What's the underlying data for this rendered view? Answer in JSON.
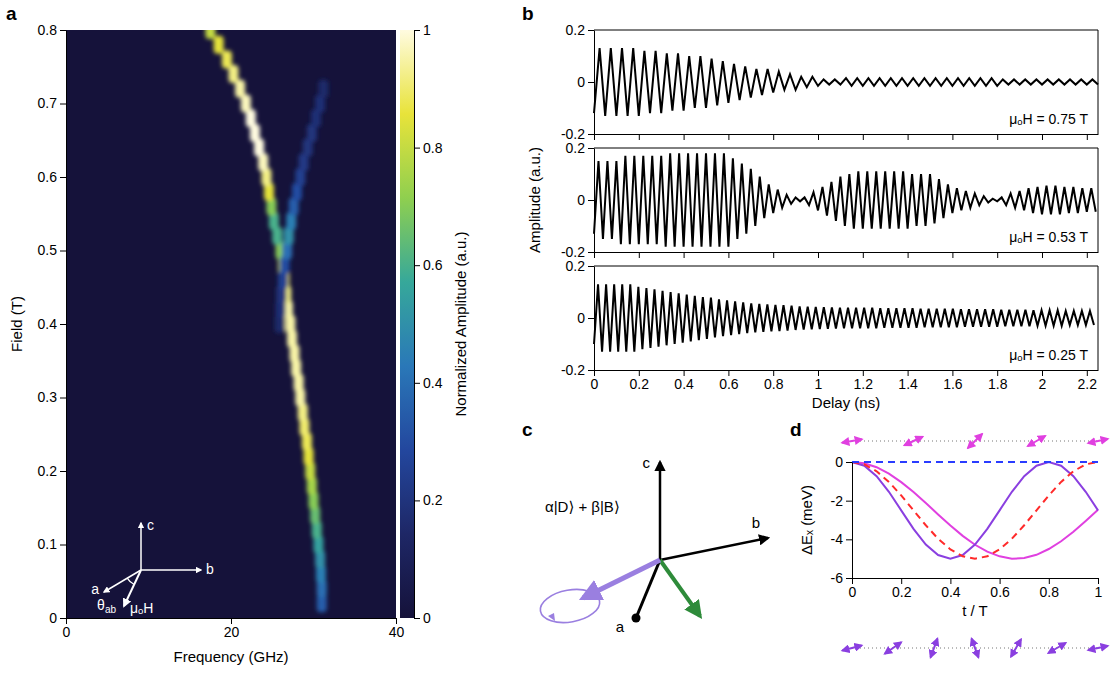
{
  "panel_labels": [
    "a",
    "b",
    "c",
    "d"
  ],
  "chart_data": [
    {
      "type": "heatmap",
      "xlabel": "Frequency (GHz)",
      "ylabel": "Field (T)",
      "xlim": [
        0,
        40
      ],
      "xticks": [
        0,
        20,
        40
      ],
      "ylim": [
        0,
        0.8
      ],
      "yticks": [
        0,
        0.1,
        0.2,
        0.3,
        0.4,
        0.5,
        0.6,
        0.7,
        0.8
      ],
      "colorbar": {
        "title": "Normalized Amplitude (a.u.)",
        "range": [
          0,
          1
        ],
        "ticks": [
          0,
          0.2,
          0.4,
          0.6,
          0.8,
          1
        ]
      },
      "annotations": [
        "c",
        "b",
        "a",
        "θab",
        "μₒH"
      ],
      "series": [
        {
          "x": [
            31,
            31,
            30.9,
            30.8,
            30.6,
            30.4,
            30.2,
            30,
            29.8,
            29.6,
            29.4,
            29.2,
            28.9,
            28.7,
            28.4,
            28.2,
            27.9,
            27.7,
            27.4,
            27.2,
            26.9,
            26.7,
            26.5,
            26.3,
            26,
            25.6,
            25.2,
            24.9,
            24.6,
            24.3,
            23.9,
            23.4,
            22.9,
            22.4,
            21.8,
            21.1,
            20.3,
            19.5,
            18.5,
            17.5
          ],
          "y": [
            0.02,
            0.04,
            0.06,
            0.08,
            0.1,
            0.12,
            0.14,
            0.16,
            0.18,
            0.2,
            0.22,
            0.24,
            0.26,
            0.28,
            0.3,
            0.32,
            0.34,
            0.36,
            0.38,
            0.4,
            0.42,
            0.44,
            0.46,
            0.48,
            0.5,
            0.52,
            0.54,
            0.56,
            0.58,
            0.6,
            0.62,
            0.64,
            0.66,
            0.68,
            0.7,
            0.72,
            0.74,
            0.76,
            0.78,
            0.8
          ],
          "amplitude": [
            0.35,
            0.4,
            0.45,
            0.5,
            0.55,
            0.6,
            0.65,
            0.7,
            0.75,
            0.8,
            0.85,
            0.88,
            0.9,
            0.92,
            0.95,
            0.95,
            0.95,
            0.95,
            0.95,
            0.95,
            0.95,
            0.92,
            0.88,
            0.8,
            0.7,
            0.6,
            0.6,
            0.7,
            0.85,
            0.92,
            0.97,
            1,
            1,
            1,
            0.97,
            0.95,
            0.92,
            0.88,
            0.85,
            0.8
          ]
        },
        {
          "x": [
            25.9,
            26,
            26.1,
            26.3,
            26.5,
            26.8,
            27,
            27.3,
            27.6,
            28,
            28.4,
            28.8,
            29.3,
            29.8,
            30.3,
            30.8,
            31.2
          ],
          "y": [
            0.4,
            0.42,
            0.44,
            0.46,
            0.48,
            0.5,
            0.52,
            0.54,
            0.56,
            0.58,
            0.6,
            0.62,
            0.64,
            0.66,
            0.68,
            0.7,
            0.72
          ],
          "amplitude": [
            0.15,
            0.18,
            0.2,
            0.25,
            0.3,
            0.4,
            0.5,
            0.45,
            0.35,
            0.3,
            0.25,
            0.22,
            0.2,
            0.2,
            0.18,
            0.18,
            0.15
          ]
        }
      ]
    },
    {
      "type": "line",
      "annotations": [
        "μₒH = 0.75 T"
      ],
      "xlim": [
        0,
        2.25
      ],
      "xticks": [
        0,
        0.2,
        0.4,
        0.6,
        0.8,
        1,
        1.2,
        1.4,
        1.6,
        1.8,
        2,
        2.2
      ],
      "ylim": [
        -0.2,
        0.2
      ],
      "yticks": [
        -0.2,
        0,
        0.2
      ],
      "tick_labels": "y",
      "color": "#000000",
      "x": [
        0,
        0.025,
        0.05,
        0.075,
        0.1,
        0.125,
        0.15,
        0.175,
        0.2,
        0.225,
        0.25,
        0.275,
        0.3,
        0.325,
        0.35,
        0.375,
        0.4,
        0.425,
        0.45,
        0.475,
        0.5,
        0.525,
        0.55,
        0.575,
        0.6,
        0.625,
        0.65,
        0.675,
        0.7,
        0.725,
        0.75,
        0.775,
        0.8,
        0.825,
        0.85,
        0.875,
        0.9,
        0.925,
        0.95,
        0.975,
        1,
        1.025,
        1.05,
        1.075,
        1.1,
        1.125,
        1.15,
        1.175,
        1.2,
        1.225,
        1.25,
        1.275,
        1.3,
        1.325,
        1.35,
        1.375,
        1.4,
        1.425,
        1.45,
        1.475,
        1.5,
        1.525,
        1.55,
        1.575,
        1.6,
        1.625,
        1.65,
        1.675,
        1.7,
        1.725,
        1.75,
        1.775,
        1.8,
        1.825,
        1.85,
        1.875,
        1.9,
        1.925,
        1.95,
        1.975,
        2,
        2.025,
        2.05,
        2.075,
        2.1,
        2.125,
        2.15,
        2.175,
        2.2,
        2.225,
        2.25
      ],
      "series": [
        {
          "values": [
            -0.12,
            0.13,
            -0.13,
            0.13,
            -0.13,
            0.13,
            -0.13,
            0.13,
            -0.13,
            0.12,
            -0.12,
            0.12,
            -0.12,
            0.11,
            -0.11,
            0.11,
            -0.11,
            0.1,
            -0.1,
            0.1,
            -0.1,
            0.09,
            -0.09,
            0.08,
            -0.08,
            0.07,
            -0.07,
            0.06,
            -0.06,
            0.05,
            -0.05,
            0.05,
            -0.04,
            0.04,
            -0.03,
            0.03,
            -0.03,
            0.02,
            -0.02,
            0.02,
            -0.015,
            0.01,
            -0.01,
            0.01,
            -0.01,
            0.015,
            -0.015,
            0.015,
            -0.015,
            0.015,
            -0.015,
            0.015,
            -0.015,
            0.015,
            -0.015,
            0.015,
            -0.015,
            0.015,
            -0.015,
            0.015,
            -0.015,
            0.015,
            -0.015,
            0.015,
            -0.015,
            0.015,
            -0.015,
            0.015,
            -0.015,
            0.015,
            -0.015,
            0.015,
            -0.015,
            0.01,
            -0.01,
            0.01,
            -0.01,
            0.01,
            -0.01,
            0.01,
            -0.01,
            0.01,
            -0.01,
            0.01,
            -0.01,
            0.01,
            -0.01,
            0.01,
            -0.01,
            0.01,
            -0.01
          ]
        }
      ]
    },
    {
      "type": "line",
      "annotations": [
        "μₒH = 0.53 T"
      ],
      "ylabel": "Amplitude (a.u.)",
      "xlim": [
        0,
        2.25
      ],
      "xticks": [
        0,
        0.2,
        0.4,
        0.6,
        0.8,
        1,
        1.2,
        1.4,
        1.6,
        1.8,
        2,
        2.2
      ],
      "ylim": [
        -0.2,
        0.2
      ],
      "yticks": [
        -0.2,
        0,
        0.2
      ],
      "tick_labels": "y",
      "color": "#000000",
      "x": [
        0,
        0.02,
        0.04,
        0.06,
        0.08,
        0.1,
        0.12,
        0.14,
        0.16,
        0.18,
        0.2,
        0.22,
        0.24,
        0.26,
        0.28,
        0.3,
        0.32,
        0.34,
        0.36,
        0.38,
        0.4,
        0.42,
        0.44,
        0.46,
        0.48,
        0.5,
        0.52,
        0.54,
        0.56,
        0.58,
        0.6,
        0.62,
        0.64,
        0.66,
        0.68,
        0.7,
        0.72,
        0.74,
        0.76,
        0.78,
        0.8,
        0.82,
        0.84,
        0.86,
        0.88,
        0.9,
        0.92,
        0.94,
        0.96,
        0.98,
        1,
        1.02,
        1.04,
        1.06,
        1.08,
        1.1,
        1.12,
        1.14,
        1.16,
        1.18,
        1.2,
        1.22,
        1.24,
        1.26,
        1.28,
        1.3,
        1.32,
        1.34,
        1.36,
        1.38,
        1.4,
        1.42,
        1.44,
        1.46,
        1.48,
        1.5,
        1.52,
        1.54,
        1.56,
        1.58,
        1.6,
        1.62,
        1.64,
        1.66,
        1.68,
        1.7,
        1.72,
        1.74,
        1.76,
        1.78,
        1.8,
        1.82,
        1.84,
        1.86,
        1.88,
        1.9,
        1.92,
        1.94,
        1.96,
        1.98,
        2,
        2.02,
        2.04,
        2.06,
        2.08,
        2.1,
        2.12,
        2.14,
        2.16,
        2.18,
        2.2,
        2.22,
        2.24
      ],
      "series": [
        {
          "values": [
            -0.13,
            0.15,
            -0.15,
            0.15,
            -0.15,
            0.15,
            -0.17,
            0.17,
            -0.17,
            0.17,
            -0.17,
            0.17,
            -0.17,
            0.17,
            -0.17,
            0.17,
            -0.18,
            0.18,
            -0.18,
            0.18,
            -0.18,
            0.18,
            -0.18,
            0.18,
            -0.18,
            0.18,
            -0.18,
            0.18,
            -0.18,
            0.18,
            -0.18,
            0.16,
            -0.15,
            0.14,
            -0.13,
            0.12,
            -0.1,
            0.09,
            -0.07,
            0.06,
            -0.05,
            0.04,
            -0.03,
            0.02,
            -0.015,
            0.01,
            -0.005,
            0.01,
            -0.02,
            0.03,
            -0.04,
            0.05,
            -0.06,
            0.07,
            -0.08,
            0.09,
            -0.1,
            0.1,
            -0.11,
            0.11,
            -0.11,
            0.11,
            -0.11,
            0.11,
            -0.11,
            0.11,
            -0.11,
            0.11,
            -0.11,
            0.11,
            -0.11,
            0.1,
            -0.1,
            0.1,
            -0.1,
            0.1,
            -0.09,
            0.08,
            -0.07,
            0.06,
            -0.05,
            0.045,
            -0.04,
            0.035,
            -0.03,
            0.025,
            -0.02,
            0.015,
            -0.01,
            0.005,
            -0.005,
            0.01,
            -0.02,
            0.025,
            -0.03,
            0.035,
            -0.04,
            0.045,
            -0.05,
            0.05,
            -0.055,
            0.055,
            -0.055,
            0.055,
            -0.055,
            0.05,
            -0.05,
            0.05,
            -0.05,
            0.045,
            -0.045,
            0.045,
            -0.045
          ]
        }
      ]
    },
    {
      "type": "line",
      "annotations": [
        "μₒH = 0.25 T"
      ],
      "xlabel": "Delay (ns)",
      "xlim": [
        0,
        2.25
      ],
      "xticks": [
        0,
        0.2,
        0.4,
        0.6,
        0.8,
        1,
        1.2,
        1.4,
        1.6,
        1.8,
        2,
        2.2
      ],
      "ylim": [
        -0.2,
        0.2
      ],
      "yticks": [
        -0.2,
        0,
        0.2
      ],
      "color": "#000000",
      "x": [
        0,
        0.018,
        0.036,
        0.054,
        0.072,
        0.09,
        0.108,
        0.126,
        0.144,
        0.162,
        0.18,
        0.198,
        0.216,
        0.234,
        0.252,
        0.27,
        0.288,
        0.306,
        0.324,
        0.342,
        0.36,
        0.378,
        0.396,
        0.414,
        0.432,
        0.45,
        0.468,
        0.486,
        0.504,
        0.522,
        0.54,
        0.558,
        0.576,
        0.594,
        0.612,
        0.63,
        0.648,
        0.666,
        0.684,
        0.702,
        0.72,
        0.738,
        0.756,
        0.774,
        0.792,
        0.81,
        0.828,
        0.846,
        0.864,
        0.882,
        0.9,
        0.918,
        0.936,
        0.954,
        0.972,
        0.99,
        1.008,
        1.026,
        1.044,
        1.062,
        1.08,
        1.098,
        1.116,
        1.134,
        1.152,
        1.17,
        1.188,
        1.206,
        1.224,
        1.242,
        1.26,
        1.278,
        1.296,
        1.314,
        1.332,
        1.35,
        1.368,
        1.386,
        1.404,
        1.422,
        1.44,
        1.458,
        1.476,
        1.494,
        1.512,
        1.53,
        1.548,
        1.566,
        1.584,
        1.602,
        1.62,
        1.638,
        1.656,
        1.674,
        1.692,
        1.71,
        1.728,
        1.746,
        1.764,
        1.782,
        1.8,
        1.818,
        1.836,
        1.854,
        1.872,
        1.89,
        1.908,
        1.926,
        1.944,
        1.962,
        1.98,
        1.998,
        2.016,
        2.034,
        2.052,
        2.07,
        2.088,
        2.106,
        2.124,
        2.142,
        2.16,
        2.178,
        2.196,
        2.214,
        2.232
      ],
      "series": [
        {
          "values": [
            -0.1,
            0.13,
            -0.13,
            0.13,
            -0.13,
            0.13,
            -0.13,
            0.13,
            -0.13,
            0.13,
            -0.13,
            0.12,
            -0.12,
            0.115,
            -0.115,
            0.11,
            -0.11,
            0.105,
            -0.105,
            0.1,
            -0.1,
            0.095,
            -0.095,
            0.09,
            -0.09,
            0.085,
            -0.085,
            0.08,
            -0.08,
            0.078,
            -0.075,
            0.072,
            -0.07,
            0.068,
            -0.066,
            0.064,
            -0.062,
            0.06,
            -0.058,
            0.056,
            -0.055,
            0.054,
            -0.053,
            0.052,
            -0.051,
            0.05,
            -0.05,
            0.049,
            -0.048,
            0.047,
            -0.046,
            0.045,
            -0.045,
            0.044,
            -0.044,
            0.043,
            -0.043,
            0.042,
            -0.042,
            0.041,
            -0.041,
            0.04,
            -0.04,
            0.04,
            -0.04,
            0.04,
            -0.04,
            0.04,
            -0.04,
            0.04,
            -0.04,
            0.038,
            -0.038,
            0.038,
            -0.038,
            0.038,
            -0.038,
            0.038,
            -0.038,
            0.038,
            -0.038,
            0.036,
            -0.036,
            0.036,
            -0.036,
            0.036,
            -0.036,
            0.036,
            -0.036,
            0.036,
            -0.036,
            0.034,
            -0.034,
            0.034,
            -0.034,
            0.034,
            -0.034,
            0.034,
            -0.034,
            0.034,
            -0.034,
            0.032,
            -0.032,
            0.032,
            -0.032,
            0.032,
            -0.032,
            0.032,
            -0.032,
            0.03,
            -0.03,
            0.03,
            -0.03,
            0.03,
            -0.03,
            0.03,
            -0.03,
            0.027,
            -0.027,
            0.027,
            -0.027,
            0.027,
            -0.027,
            0.027,
            -0.027
          ]
        }
      ]
    },
    {
      "type": "line",
      "xlabel": "t / T",
      "ylabel": "ΔEₓ (meV)",
      "xlim": [
        0,
        1
      ],
      "xticks": [
        0,
        0.2,
        0.4,
        0.6,
        0.8,
        1
      ],
      "ylim": [
        -6,
        0
      ],
      "yticks": [
        -6,
        -4,
        -2,
        0
      ],
      "x": [
        0,
        0.05,
        0.1,
        0.15,
        0.2,
        0.25,
        0.3,
        0.35,
        0.4,
        0.45,
        0.5,
        0.55,
        0.6,
        0.65,
        0.7,
        0.75,
        0.8,
        0.85,
        0.9,
        0.95,
        1
      ],
      "series": [
        {
          "color": "#e040e0",
          "line_style": "solid",
          "values": [
            0,
            -0.07,
            -0.27,
            -0.6,
            -1.04,
            -1.55,
            -2.12,
            -2.71,
            -3.28,
            -3.82,
            -4.28,
            -4.64,
            -4.88,
            -5,
            -4.97,
            -4.8,
            -4.5,
            -4.1,
            -3.61,
            -3.05,
            -2.47
          ]
        },
        {
          "color": "#8a3fe0",
          "line_style": "solid",
          "values": [
            0,
            -0.19,
            -0.73,
            -1.54,
            -2.5,
            -3.46,
            -4.27,
            -4.81,
            -5,
            -4.81,
            -4.27,
            -3.46,
            -2.5,
            -1.54,
            -0.73,
            -0.19,
            0,
            -0.19,
            -0.73,
            -1.54,
            -2.5
          ]
        },
        {
          "color": "#ff2a2a",
          "line_style": "dashed",
          "values": [
            0,
            -0.12,
            -0.48,
            -1.03,
            -1.73,
            -2.5,
            -3.27,
            -3.97,
            -4.52,
            -4.88,
            -5,
            -4.88,
            -4.52,
            -3.97,
            -3.27,
            -2.5,
            -1.73,
            -1.03,
            -0.48,
            -0.12,
            0
          ]
        },
        {
          "color": "#2a3cff",
          "line_style": "dashed",
          "values": [
            0,
            0,
            0,
            0,
            0,
            0,
            0,
            0,
            0,
            0,
            0,
            0,
            0,
            0,
            0,
            0,
            0,
            0,
            0,
            0,
            0
          ]
        }
      ]
    }
  ],
  "diagram": {
    "axes": [
      "c",
      "b",
      "a"
    ],
    "state": "α|D⟩ + β|B⟩"
  }
}
